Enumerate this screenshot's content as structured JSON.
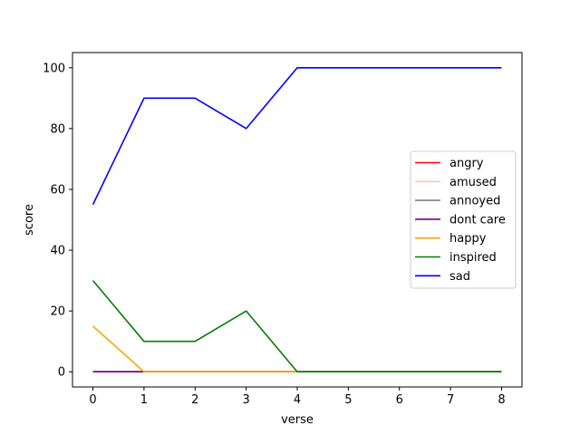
{
  "chart_data": {
    "type": "line",
    "title": "",
    "xlabel": "verse",
    "ylabel": "score",
    "x": [
      0,
      1,
      2,
      3,
      4,
      5,
      6,
      7,
      8
    ],
    "xticks": [
      0,
      1,
      2,
      3,
      4,
      5,
      6,
      7,
      8
    ],
    "yticks": [
      0,
      20,
      40,
      60,
      80,
      100
    ],
    "xlim": [
      -0.4,
      8.4
    ],
    "ylim": [
      -5,
      105
    ],
    "grid": false,
    "legend_position": "center-right",
    "series": [
      {
        "name": "angry",
        "color": "#ff0000",
        "values": [
          0,
          0,
          0,
          0,
          0,
          0,
          0,
          0,
          0
        ]
      },
      {
        "name": "amused",
        "color": "#ffc0cb",
        "values": [
          0,
          0,
          0,
          0,
          0,
          0,
          0,
          0,
          0
        ]
      },
      {
        "name": "annoyed",
        "color": "#808080",
        "values": [
          0,
          0,
          0,
          0,
          0,
          0,
          0,
          0,
          0
        ]
      },
      {
        "name": "dont care",
        "color": "#800080",
        "values": [
          0,
          0,
          0,
          0,
          0,
          0,
          0,
          0,
          0
        ]
      },
      {
        "name": "happy",
        "color": "#ffa500",
        "values": [
          15,
          0,
          0,
          0,
          0,
          0,
          0,
          0,
          0
        ]
      },
      {
        "name": "inspired",
        "color": "#008000",
        "values": [
          30,
          10,
          10,
          20,
          0,
          0,
          0,
          0,
          0
        ]
      },
      {
        "name": "sad",
        "color": "#0000ff",
        "values": [
          55,
          90,
          90,
          80,
          100,
          100,
          100,
          100,
          100
        ]
      }
    ]
  }
}
